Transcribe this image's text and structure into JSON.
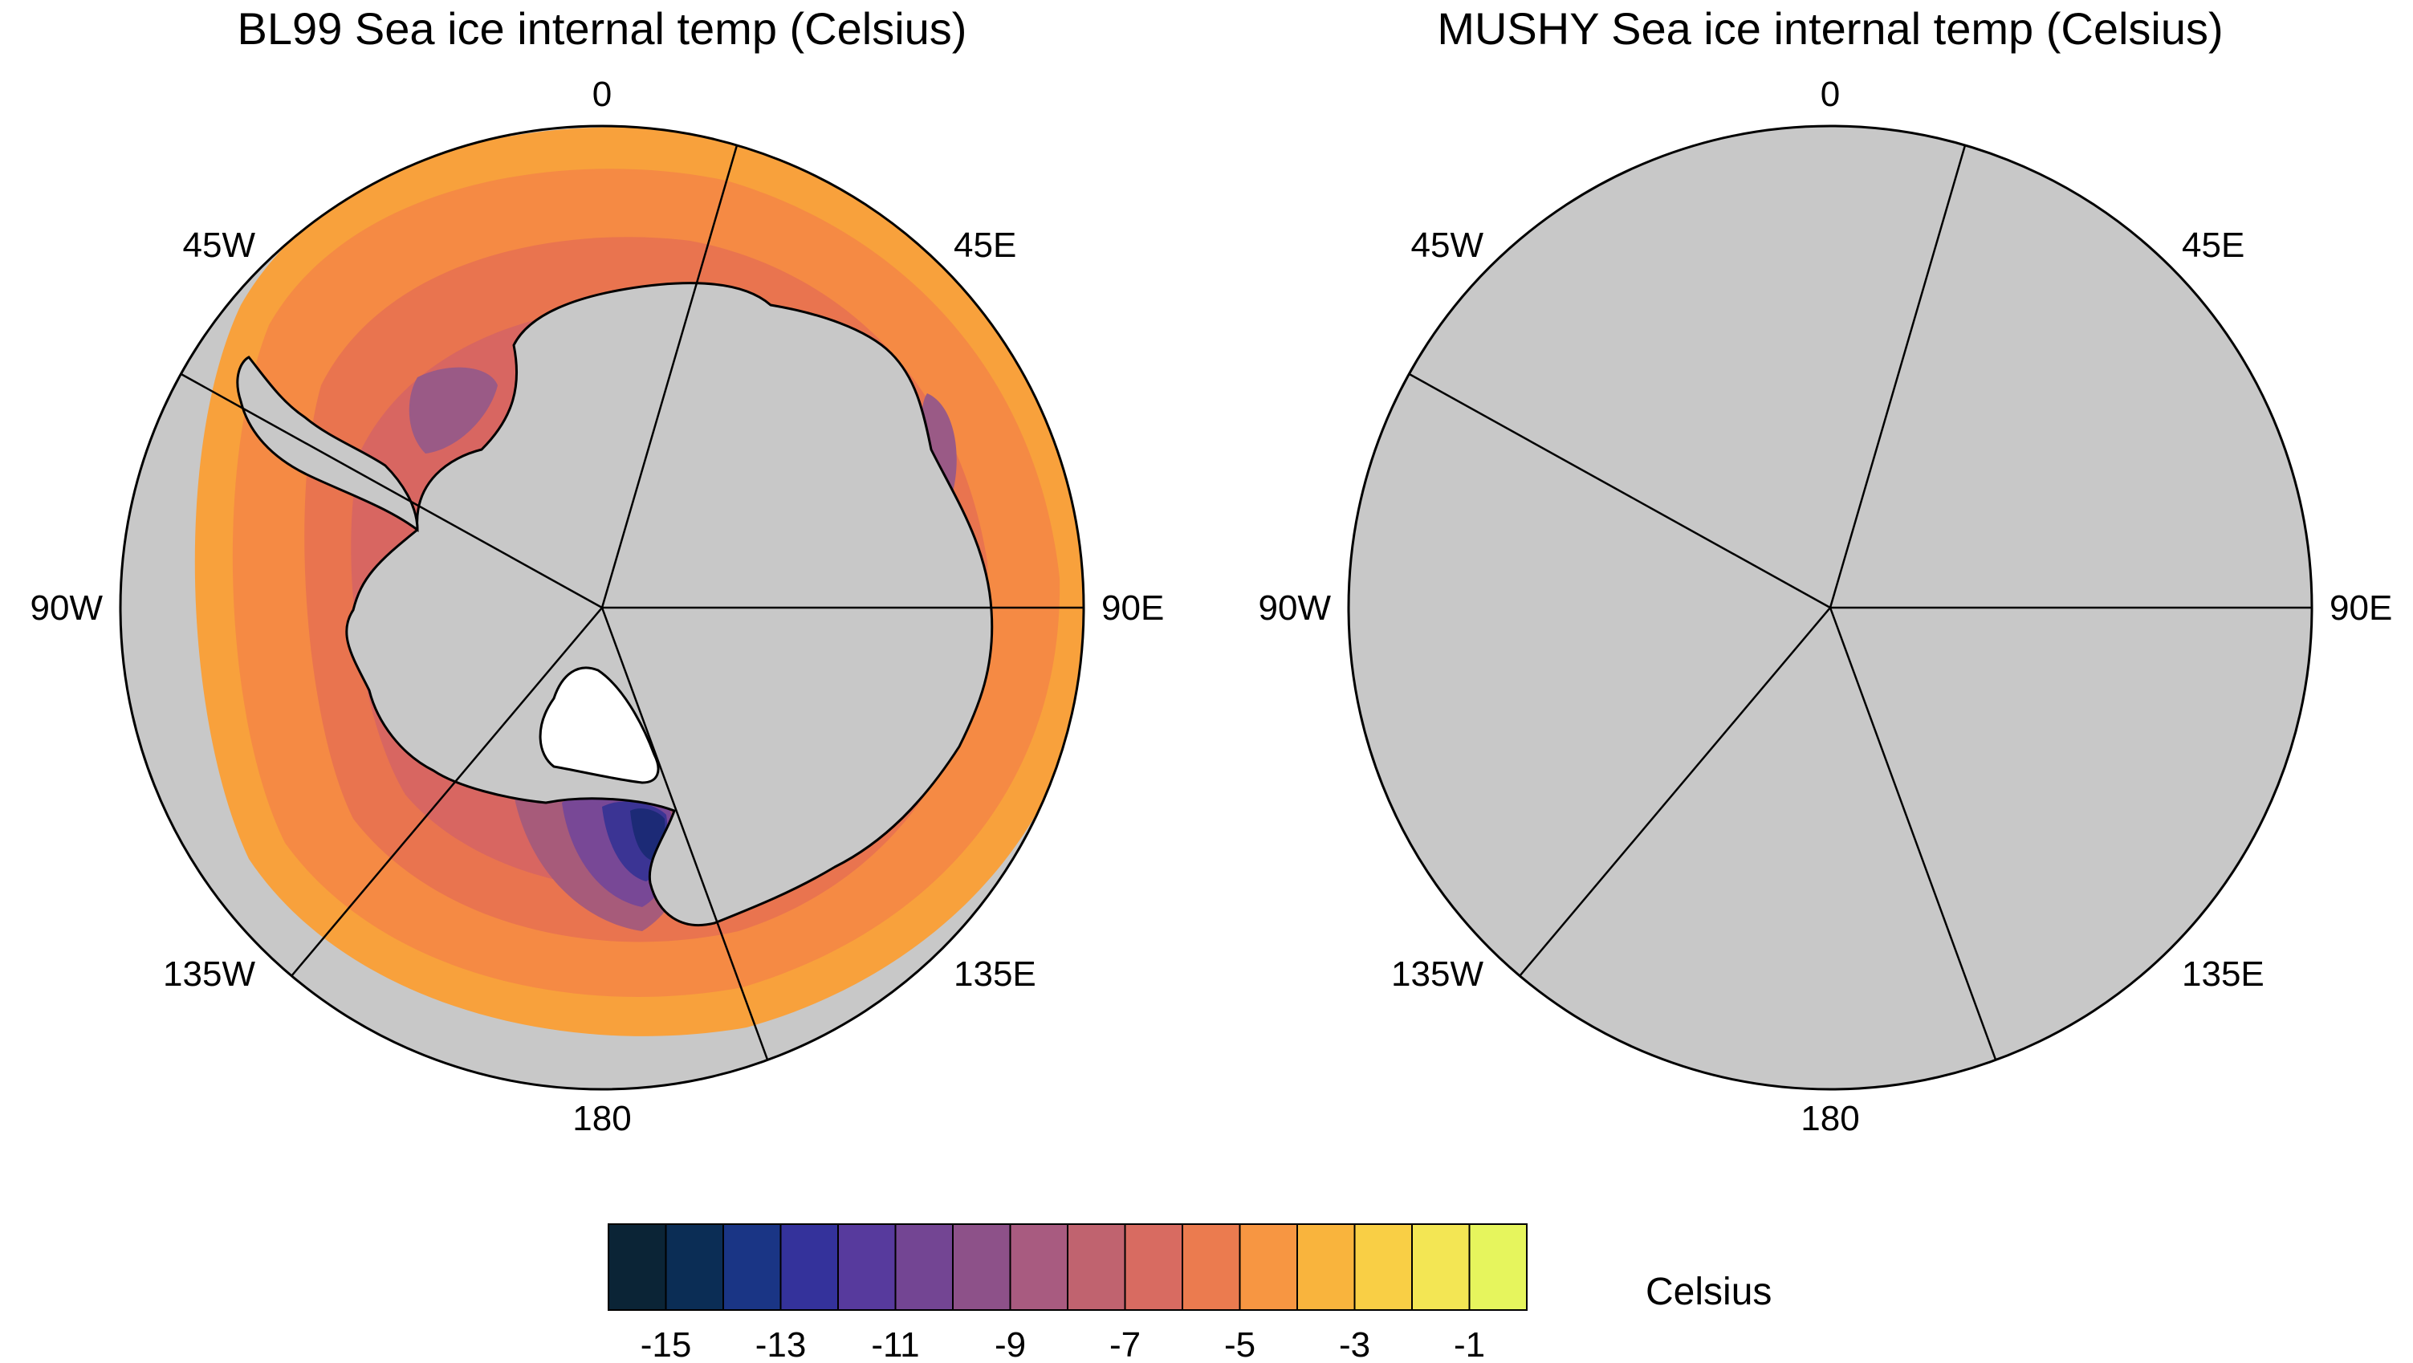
{
  "panels": [
    {
      "title": "BL99 Sea ice internal temp (Celsius)",
      "ring_colors": [
        "#f8a13c",
        "#f58a44",
        "#e9744f",
        "#d86661"
      ],
      "cold_colors": [
        "#a75b7a",
        "#784896",
        "#3b3494",
        "#1c2a76"
      ],
      "side_accent": "#9a5a86"
    },
    {
      "title": "MUSHY Sea ice internal temp (Celsius)",
      "ring_colors": [
        "#f8bf44",
        "#f8a63c",
        "#f08f45",
        "#e57452"
      ],
      "cold_colors": [
        "#c06a6b",
        "#8c4d90",
        "#4b3798",
        "#27307f"
      ],
      "side_accent": "#9d5a88"
    }
  ],
  "longitude_labels": [
    "0",
    "45E",
    "90E",
    "135E",
    "180",
    "135W",
    "90W",
    "45W"
  ],
  "colorbar": {
    "unit": "Celsius",
    "colors": [
      "#0b2436",
      "#0b2d55",
      "#1a3585",
      "#34329b",
      "#573a9d",
      "#734593",
      "#8d5189",
      "#a85b80",
      "#c0636f",
      "#d86b61",
      "#eb7b4f",
      "#f79642",
      "#f9b43d",
      "#f9cf45",
      "#f3e654",
      "#e6f55d"
    ],
    "tick_labels": [
      "-15",
      "-13",
      "-11",
      "-9",
      "-7",
      "-5",
      "-3",
      "-1"
    ]
  },
  "map_colors": {
    "land": "#c8c8c8",
    "ice_shelf": "#ffffff",
    "coast": "#000000"
  }
}
